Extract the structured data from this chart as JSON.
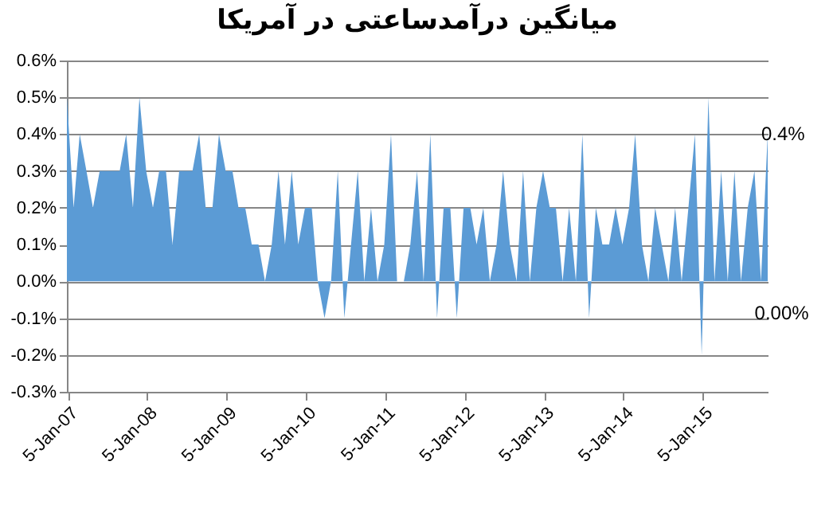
{
  "chart_data": {
    "type": "area",
    "title": "میانگین درآمدساعتی در آمریکا",
    "x": [
      "2007-01",
      "2007-02",
      "2007-03",
      "2007-04",
      "2007-05",
      "2007-06",
      "2007-07",
      "2007-08",
      "2007-09",
      "2007-10",
      "2007-11",
      "2007-12",
      "2008-01",
      "2008-02",
      "2008-03",
      "2008-04",
      "2008-05",
      "2008-06",
      "2008-07",
      "2008-08",
      "2008-09",
      "2008-10",
      "2008-11",
      "2008-12",
      "2009-01",
      "2009-02",
      "2009-03",
      "2009-04",
      "2009-05",
      "2009-06",
      "2009-07",
      "2009-08",
      "2009-09",
      "2009-10",
      "2009-11",
      "2009-12",
      "2010-01",
      "2010-02",
      "2010-03",
      "2010-04",
      "2010-05",
      "2010-06",
      "2010-07",
      "2010-08",
      "2010-09",
      "2010-10",
      "2010-11",
      "2010-12",
      "2011-01",
      "2011-02",
      "2011-03",
      "2011-04",
      "2011-05",
      "2011-06",
      "2011-07",
      "2011-08",
      "2011-09",
      "2011-10",
      "2011-11",
      "2011-12",
      "2012-01",
      "2012-02",
      "2012-03",
      "2012-04",
      "2012-05",
      "2012-06",
      "2012-07",
      "2012-08",
      "2012-09",
      "2012-10",
      "2012-11",
      "2012-12",
      "2013-01",
      "2013-02",
      "2013-03",
      "2013-04",
      "2013-05",
      "2013-06",
      "2013-07",
      "2013-08",
      "2013-09",
      "2013-10",
      "2013-11",
      "2013-12",
      "2014-01",
      "2014-02",
      "2014-03",
      "2014-04",
      "2014-05",
      "2014-06",
      "2014-07",
      "2014-08",
      "2014-09",
      "2014-10",
      "2014-11",
      "2014-12",
      "2015-01",
      "2015-02",
      "2015-03",
      "2015-04",
      "2015-05",
      "2015-06",
      "2015-07",
      "2015-08",
      "2015-09",
      "2015-10",
      "2015-11"
    ],
    "series": [
      {
        "color": "#5b9bd5",
        "values": [
          0.5,
          0.2,
          0.4,
          0.3,
          0.2,
          0.3,
          0.3,
          0.3,
          0.3,
          0.4,
          0.2,
          0.5,
          0.3,
          0.2,
          0.3,
          0.3,
          0.1,
          0.3,
          0.3,
          0.3,
          0.4,
          0.2,
          0.2,
          0.4,
          0.3,
          0.3,
          0.2,
          0.2,
          0.1,
          0.1,
          0.0,
          0.1,
          0.3,
          0.1,
          0.3,
          0.1,
          0.2,
          0.2,
          0.0,
          -0.1,
          0.0,
          0.3,
          -0.1,
          0.1,
          0.3,
          0.0,
          0.2,
          0.0,
          0.1,
          0.4,
          0.0,
          0.0,
          0.1,
          0.3,
          0.0,
          0.4,
          -0.1,
          0.2,
          0.2,
          -0.1,
          0.2,
          0.2,
          0.1,
          0.2,
          0.0,
          0.1,
          0.3,
          0.1,
          0.0,
          0.3,
          0.0,
          0.2,
          0.3,
          0.2,
          0.2,
          0.0,
          0.2,
          0.0,
          0.4,
          -0.1,
          0.2,
          0.1,
          0.1,
          0.2,
          0.1,
          0.2,
          0.4,
          0.1,
          0.0,
          0.2,
          0.1,
          0.0,
          0.2,
          0.0,
          0.2,
          0.4,
          -0.2,
          0.5,
          0.0,
          0.3,
          0.0,
          0.3,
          0.0,
          0.2,
          0.3,
          0.0,
          0.4
        ]
      }
    ],
    "xlim": [
      "2007-01",
      "2015-11"
    ],
    "ylim": [
      -0.3,
      0.6
    ],
    "yticks": [
      {
        "value": -0.3,
        "label": "-0.3%"
      },
      {
        "value": -0.2,
        "label": "-0.2%"
      },
      {
        "value": -0.1,
        "label": "-0.1%"
      },
      {
        "value": 0.0,
        "label": "0.0%"
      },
      {
        "value": 0.1,
        "label": "0.1%"
      },
      {
        "value": 0.2,
        "label": "0.2%"
      },
      {
        "value": 0.3,
        "label": "0.3%"
      },
      {
        "value": 0.4,
        "label": "0.4%"
      },
      {
        "value": 0.5,
        "label": "0.5%"
      },
      {
        "value": 0.6,
        "label": "0.6%"
      }
    ],
    "xticks": [
      {
        "value": "2007-01-05",
        "label": "5-Jan-07"
      },
      {
        "value": "2008-01-05",
        "label": "5-Jan-08"
      },
      {
        "value": "2009-01-05",
        "label": "5-Jan-09"
      },
      {
        "value": "2010-01-05",
        "label": "5-Jan-10"
      },
      {
        "value": "2011-01-05",
        "label": "5-Jan-11"
      },
      {
        "value": "2012-01-05",
        "label": "5-Jan-12"
      },
      {
        "value": "2013-01-05",
        "label": "5-Jan-13"
      },
      {
        "value": "2014-01-05",
        "label": "5-Jan-14"
      },
      {
        "value": "2015-01-05",
        "label": "5-Jan-15"
      }
    ],
    "grid": "y",
    "annotations": [
      {
        "text": "0.4%",
        "x": "2015-11",
        "y": 0.4
      },
      {
        "text": "0.00%",
        "x": "2015-10",
        "y": 0.0
      }
    ]
  }
}
